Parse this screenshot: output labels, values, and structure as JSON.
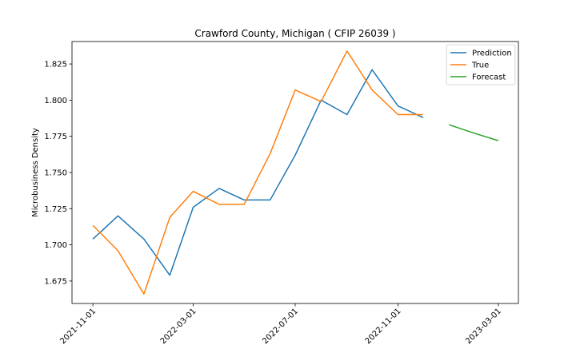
{
  "chart_data": {
    "type": "line",
    "title": "Crawford County, Michigan ( CFIP 26039 )",
    "xlabel": "",
    "ylabel": "Microbusiness Density",
    "ylim": [
      1.6595,
      1.8405
    ],
    "xlim": [
      "2021-10-07",
      "2023-03-25"
    ],
    "x_ticks": [
      "2021-11-01",
      "2022-03-01",
      "2022-07-01",
      "2022-11-01",
      "2023-03-01"
    ],
    "y_ticks": [
      1.675,
      1.7,
      1.725,
      1.75,
      1.775,
      1.8,
      1.825
    ],
    "y_tick_labels": [
      "1.675",
      "1.700",
      "1.725",
      "1.750",
      "1.775",
      "1.800",
      "1.825"
    ],
    "grid": false,
    "legend_position": "top-right",
    "series": [
      {
        "name": "Prediction",
        "color": "#1f77b4",
        "x": [
          "2021-11-01",
          "2021-12-01",
          "2022-01-01",
          "2022-02-01",
          "2022-03-01",
          "2022-04-01",
          "2022-05-01",
          "2022-06-01",
          "2022-07-01",
          "2022-08-01",
          "2022-09-01",
          "2022-10-01",
          "2022-11-01",
          "2022-12-01"
        ],
        "values": [
          1.704,
          1.72,
          1.704,
          1.679,
          1.726,
          1.739,
          1.731,
          1.731,
          1.762,
          1.8,
          1.79,
          1.821,
          1.796,
          1.788
        ]
      },
      {
        "name": "True",
        "color": "#ff7f0e",
        "x": [
          "2021-11-01",
          "2021-12-01",
          "2022-01-01",
          "2022-02-01",
          "2022-03-01",
          "2022-04-01",
          "2022-05-01",
          "2022-06-01",
          "2022-07-01",
          "2022-08-01",
          "2022-09-01",
          "2022-10-01",
          "2022-11-01",
          "2022-12-01"
        ],
        "values": [
          1.7135,
          1.696,
          1.666,
          1.719,
          1.737,
          1.728,
          1.728,
          1.763,
          1.807,
          1.799,
          1.834,
          1.807,
          1.79,
          1.79
        ]
      },
      {
        "name": "Forecast",
        "color": "#2ca02c",
        "x": [
          "2023-01-01",
          "2023-02-01",
          "2023-03-01"
        ],
        "values": [
          1.783,
          1.777,
          1.772
        ]
      }
    ]
  }
}
